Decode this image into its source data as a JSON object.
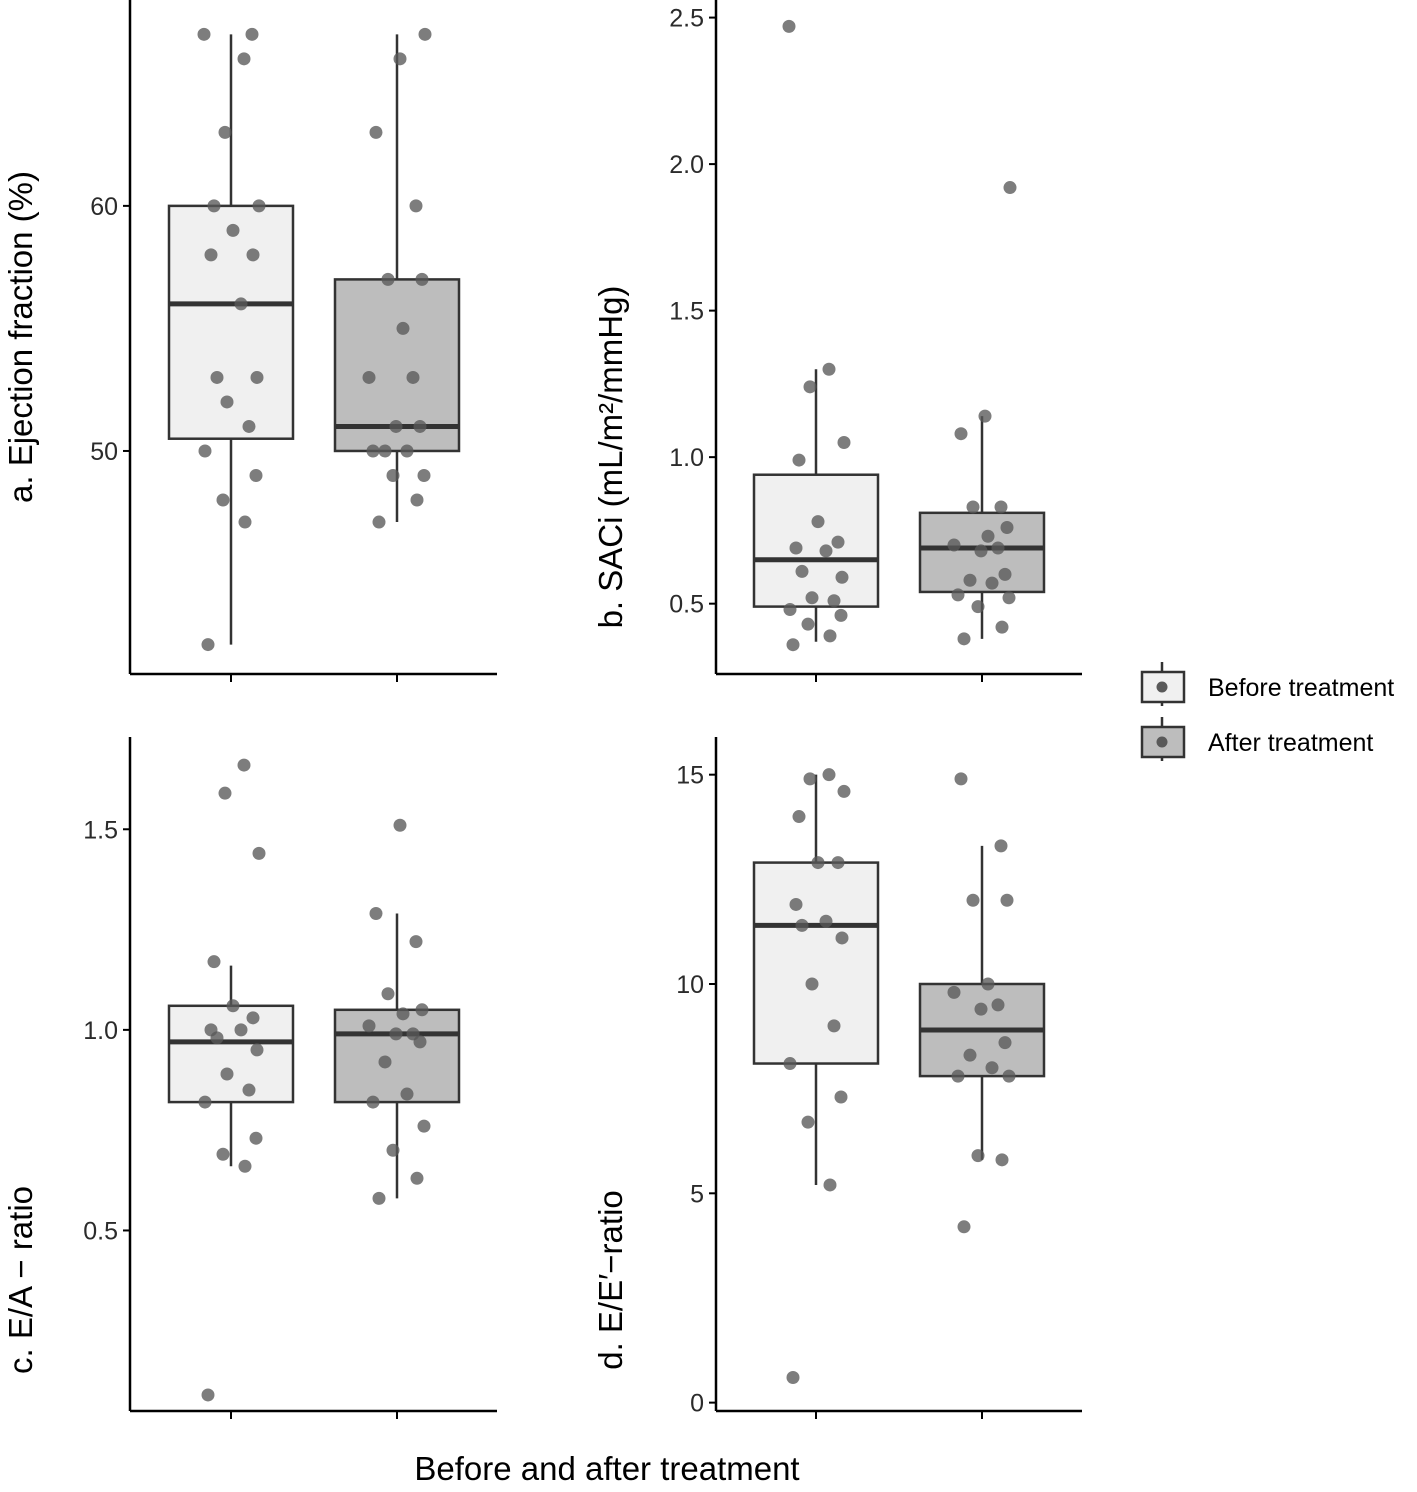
{
  "figure": {
    "xlabel": "Before and after treatment",
    "legend": {
      "position": "right",
      "entries": [
        {
          "label": "Before treatment",
          "fill": "#f0f0f0"
        },
        {
          "label": "After treatment",
          "fill": "#bdbdbd"
        }
      ]
    },
    "colors": {
      "axis": "#000000",
      "box_line": "#333333",
      "point": "#595959"
    }
  },
  "chart_data": [
    {
      "type": "box",
      "panel": "a",
      "ylabel": "a.  Ejection fraction (%)",
      "ylim": [
        40.9,
        68.4
      ],
      "yticks": [
        50,
        60
      ],
      "categories": [
        "Before treatment",
        "After treatment"
      ],
      "boxes": [
        {
          "name": "Before treatment",
          "lower_whisker": 42.1,
          "q1": 50.5,
          "median": 56,
          "q3": 60,
          "upper_whisker": 67
        },
        {
          "name": "After treatment",
          "lower_whisker": 47.1,
          "q1": 50,
          "median": 51,
          "q3": 57,
          "upper_whisker": 67
        }
      ],
      "points": [
        [
          42.1,
          47.1,
          48,
          49,
          50,
          51,
          52,
          53,
          53,
          56,
          58,
          58,
          59,
          60,
          60,
          63,
          66,
          67,
          67
        ],
        [
          47.1,
          48,
          49,
          49,
          50,
          50,
          50,
          51,
          51,
          53,
          53,
          55,
          57,
          57,
          60,
          63,
          66,
          67
        ]
      ]
    },
    {
      "type": "box",
      "panel": "b",
      "ylabel": "b.  SACi (mL/m²/mmHg)",
      "ylim": [
        0.26,
        2.56
      ],
      "yticks": [
        0.5,
        1.0,
        1.5,
        2.0,
        2.5
      ],
      "categories": [
        "Before treatment",
        "After treatment"
      ],
      "boxes": [
        {
          "name": "Before treatment",
          "lower_whisker": 0.37,
          "q1": 0.49,
          "median": 0.65,
          "q3": 0.94,
          "upper_whisker": 1.3
        },
        {
          "name": "After treatment",
          "lower_whisker": 0.38,
          "q1": 0.54,
          "median": 0.69,
          "q3": 0.81,
          "upper_whisker": 1.14
        }
      ],
      "points": [
        [
          0.36,
          0.39,
          0.43,
          0.46,
          0.48,
          0.51,
          0.52,
          0.59,
          0.61,
          0.68,
          0.69,
          0.71,
          0.78,
          0.99,
          1.05,
          1.24,
          1.3,
          2.47
        ],
        [
          0.38,
          0.42,
          0.49,
          0.52,
          0.53,
          0.57,
          0.58,
          0.6,
          0.68,
          0.69,
          0.7,
          0.73,
          0.76,
          0.83,
          0.83,
          1.08,
          1.14,
          1.92
        ]
      ]
    },
    {
      "type": "box",
      "panel": "c",
      "ylabel": "c.  E/A − ratio",
      "ylim": [
        0.05,
        1.73
      ],
      "yticks": [
        0.5,
        1.0,
        1.5
      ],
      "categories": [
        "Before treatment",
        "After treatment"
      ],
      "boxes": [
        {
          "name": "Before treatment",
          "lower_whisker": 0.66,
          "q1": 0.82,
          "median": 0.97,
          "q3": 1.06,
          "upper_whisker": 1.16
        },
        {
          "name": "After treatment",
          "lower_whisker": 0.58,
          "q1": 0.82,
          "median": 0.99,
          "q3": 1.05,
          "upper_whisker": 1.29
        }
      ],
      "points": [
        [
          0.09,
          0.66,
          0.69,
          0.73,
          0.82,
          0.85,
          0.89,
          0.95,
          0.98,
          1.0,
          1.0,
          1.03,
          1.06,
          1.17,
          1.44,
          1.59,
          1.66
        ],
        [
          0.58,
          0.63,
          0.7,
          0.76,
          0.82,
          0.84,
          0.92,
          0.97,
          0.99,
          0.99,
          1.01,
          1.04,
          1.05,
          1.09,
          1.22,
          1.29,
          1.51
        ]
      ]
    },
    {
      "type": "box",
      "panel": "d",
      "ylabel": "d.  E/E′−ratio",
      "ylim": [
        -0.2,
        15.9
      ],
      "yticks": [
        0,
        5,
        10,
        15
      ],
      "categories": [
        "Before treatment",
        "After treatment"
      ],
      "boxes": [
        {
          "name": "Before treatment",
          "lower_whisker": 5.2,
          "q1": 8.1,
          "median": 11.4,
          "q3": 12.9,
          "upper_whisker": 15
        },
        {
          "name": "After treatment",
          "lower_whisker": 5.8,
          "q1": 7.8,
          "median": 8.9,
          "q3": 10,
          "upper_whisker": 13.3
        }
      ],
      "points": [
        [
          0.6,
          5.2,
          6.7,
          7.3,
          8.1,
          9.0,
          10.0,
          11.1,
          11.4,
          11.5,
          11.9,
          12.9,
          12.9,
          14.0,
          14.6,
          14.9,
          15.0
        ],
        [
          4.2,
          5.8,
          5.9,
          7.8,
          7.8,
          8.0,
          8.3,
          8.6,
          9.4,
          9.5,
          9.8,
          10.0,
          12.0,
          12.0,
          13.3,
          14.9
        ]
      ]
    }
  ]
}
